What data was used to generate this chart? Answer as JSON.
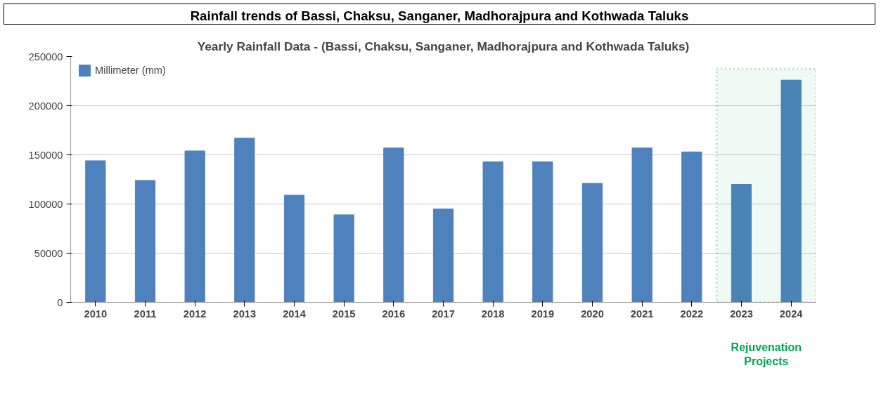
{
  "chart_data": {
    "type": "bar",
    "title": "Rainfall trends of Bassi, Chaksu, Sanganer, Madhorajpura and Kothwada Taluks",
    "subtitle": "Yearly Rainfall Data - (Bassi, Chaksu, Sanganer, Madhorajpura and Kothwada Taluks)",
    "categories": [
      "2010",
      "2011",
      "2012",
      "2013",
      "2014",
      "2015",
      "2016",
      "2017",
      "2018",
      "2019",
      "2020",
      "2021",
      "2022",
      "2023",
      "2024"
    ],
    "series": [
      {
        "name": "Millimeter (mm)",
        "color": "#4f81bd",
        "values": [
          144000,
          124000,
          154000,
          167000,
          109000,
          89000,
          157000,
          95000,
          143000,
          143000,
          121000,
          157000,
          153000,
          120000,
          226000
        ]
      }
    ],
    "ylim": [
      0,
      250000
    ],
    "yticks": [
      0,
      50000,
      100000,
      150000,
      200000,
      250000
    ],
    "grid": "y",
    "legend": "top left",
    "bands": [
      {
        "axis": "x",
        "from": "2023",
        "to": "2024",
        "label": "Rejuvenation Projects",
        "color": "#00a550"
      }
    ]
  }
}
